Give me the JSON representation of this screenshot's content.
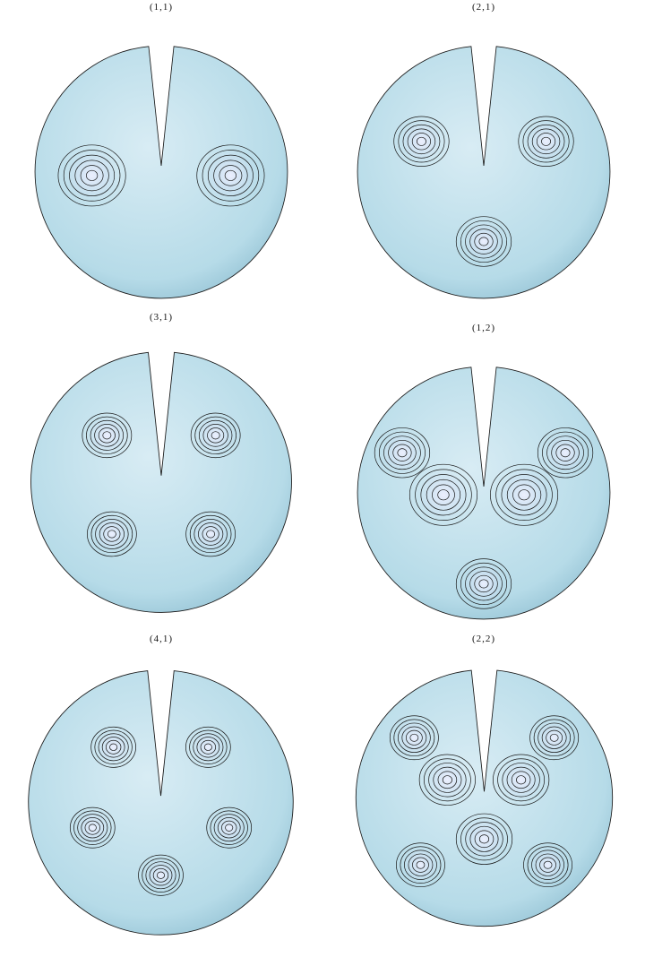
{
  "panels": [
    {
      "label": "(1,1)",
      "m": 1,
      "n": 1
    },
    {
      "label": "(2,1)",
      "m": 2,
      "n": 1
    },
    {
      "label": "(3,1)",
      "m": 3,
      "n": 1
    },
    {
      "label": "(1,2)",
      "m": 1,
      "n": 2
    },
    {
      "label": "(4,1)",
      "m": 4,
      "n": 1
    },
    {
      "label": "(2,2)",
      "m": 2,
      "n": 2
    }
  ],
  "colors": {
    "surface_light": "#d8ecf4",
    "surface_mid": "#b6dbe8",
    "surface_dark": "#7fb3c8",
    "contour": "#1a1a1a",
    "background": "#ffffff"
  }
}
